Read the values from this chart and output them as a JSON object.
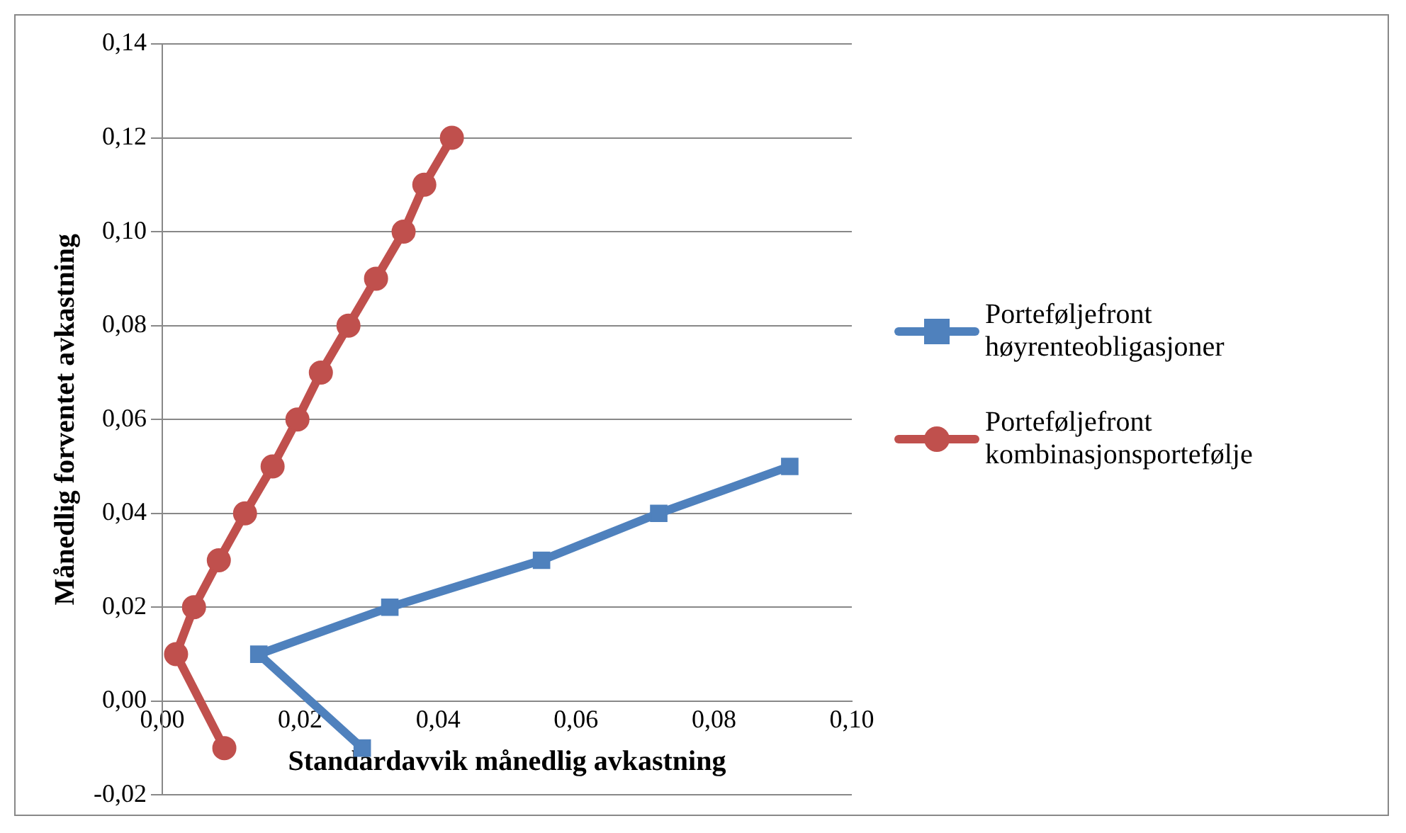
{
  "chart_data": {
    "type": "line",
    "xlabel": "Standardavvik månedlig avkastning",
    "ylabel": "Månedlig forventet avkastning",
    "xlim": [
      0,
      0.1
    ],
    "xticks": [
      {
        "value": 0,
        "label": "0,00"
      },
      {
        "value": 0.02,
        "label": "0,02"
      },
      {
        "value": 0.04,
        "label": "0,04"
      },
      {
        "value": 0.06,
        "label": "0,06"
      },
      {
        "value": 0.08,
        "label": "0,08"
      },
      {
        "value": 0.1,
        "label": "0,10"
      }
    ],
    "ylim": [
      -0.02,
      0.14
    ],
    "yticks": [
      {
        "value": -0.02,
        "label": "-0,02"
      },
      {
        "value": 0,
        "label": "0,00"
      },
      {
        "value": 0.02,
        "label": "0,02"
      },
      {
        "value": 0.04,
        "label": "0,04"
      },
      {
        "value": 0.06,
        "label": "0,06"
      },
      {
        "value": 0.08,
        "label": "0,08"
      },
      {
        "value": 0.1,
        "label": "0,10"
      },
      {
        "value": 0.12,
        "label": "0,12"
      },
      {
        "value": 0.14,
        "label": "0,14"
      }
    ],
    "grid": "y",
    "legend": "right",
    "line_style": "solid",
    "series": [
      {
        "name": "Porteføljefront høyrenteobligasjoner",
        "color": "#4f81bd",
        "marker": "square",
        "x": [
          0.029,
          0.014,
          0.033,
          0.055,
          0.072,
          0.091
        ],
        "values": [
          -0.01,
          0.01,
          0.02,
          0.03,
          0.04,
          0.05
        ]
      },
      {
        "name": "Porteføljefront kombinasjonsportefølje",
        "color": "#c0504d",
        "marker": "circle",
        "x": [
          0.009,
          0.002,
          0.0046,
          0.0082,
          0.012,
          0.016,
          0.0196,
          0.023,
          0.027,
          0.031,
          0.035,
          0.038,
          0.042
        ],
        "values": [
          -0.01,
          0.01,
          0.02,
          0.03,
          0.04,
          0.05,
          0.06,
          0.07,
          0.08,
          0.09,
          0.1,
          0.11,
          0.12
        ]
      }
    ]
  }
}
